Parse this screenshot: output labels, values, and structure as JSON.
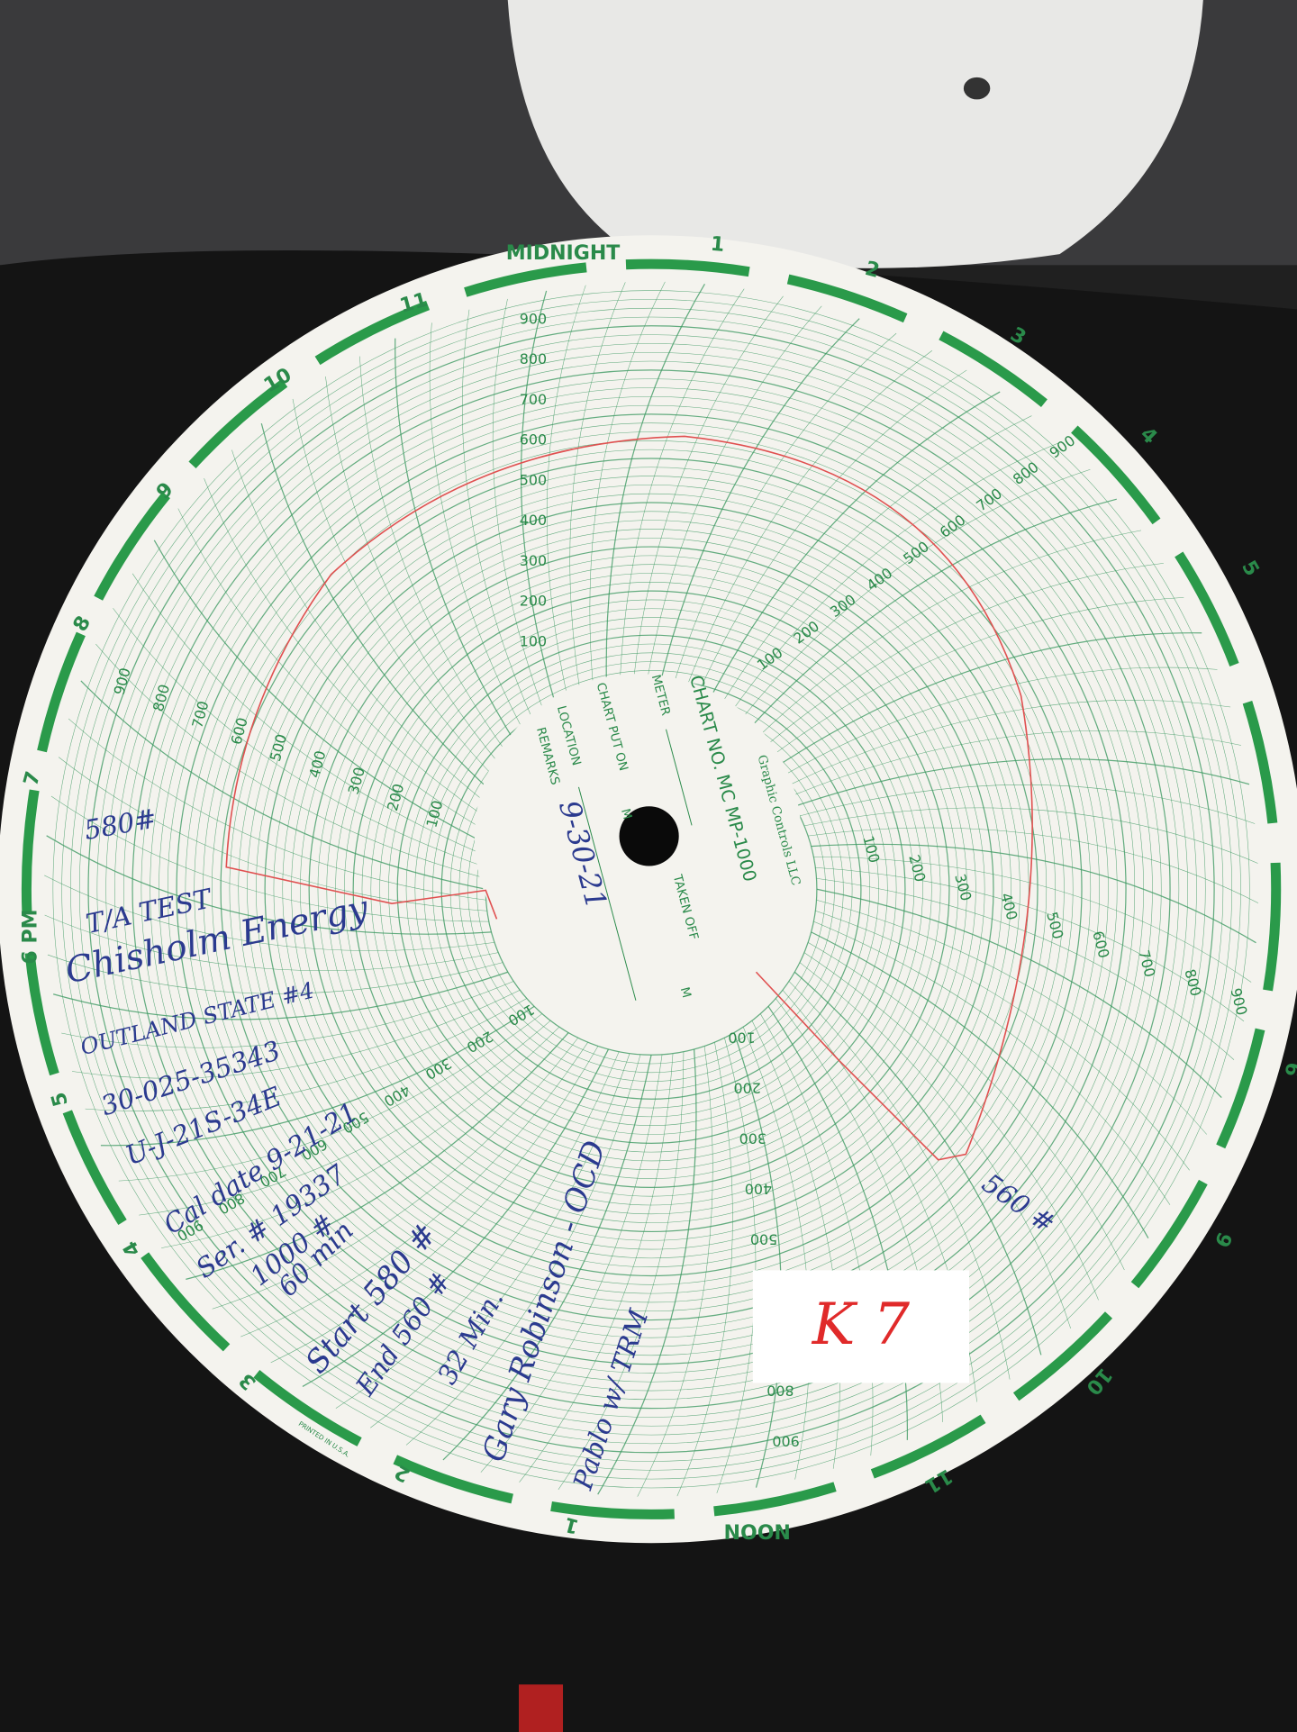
{
  "chart_paper": {
    "hour_labels": [
      "MIDNIGHT",
      "1",
      "2",
      "3",
      "4",
      "5",
      "6",
      "9",
      "10",
      "11",
      "NOON",
      "1",
      "2",
      "3",
      "4",
      "5",
      "6 PM",
      "7",
      "8",
      "9",
      "10",
      "11"
    ],
    "scale_labels": [
      "100",
      "200",
      "300",
      "400",
      "500",
      "600",
      "700",
      "800",
      "900"
    ],
    "center": {
      "chart_no": "CHART NO. MC MP-1000",
      "maker": "Graphic Controls LLC",
      "meter": "METER",
      "put_on": "CHART PUT ON",
      "location": "LOCATION",
      "remarks": "REMARKS",
      "taken_off": "TAKEN OFF",
      "m": "M"
    },
    "printed_note": "PRINTED IN U.S.A.",
    "handwritten": {
      "date": "9-30-21",
      "start_pressure": "580#",
      "test": "T/A TEST",
      "company": "Chisholm Energy",
      "well": "OUTLAND STATE #4",
      "api": "30-025-35343",
      "location": "U-J-21S-34E",
      "cal_date": "Cal date 9-21-21",
      "serial": "Ser. # 19337",
      "range": "1000 #",
      "duration": "60 min",
      "start": "Start 580 #",
      "end": "End 560 #",
      "elapsed": "32 Min.",
      "witness": "Gary Robinson - OCD",
      "operator": "Pablo w/ TRM",
      "end_pressure": "560 #"
    },
    "sticker": "K 7"
  }
}
